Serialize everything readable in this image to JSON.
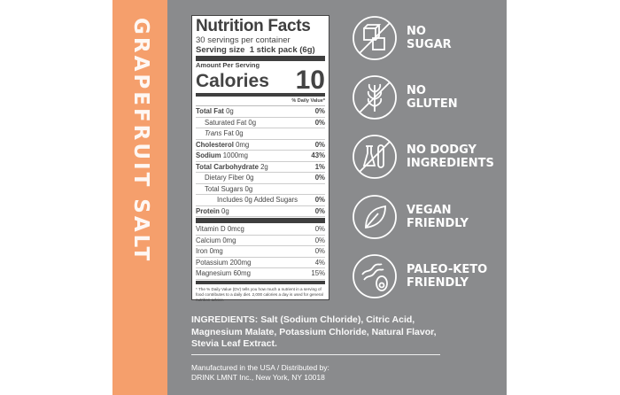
{
  "flavor": "GRAPEFRUIT SALT",
  "colors": {
    "accent": "#f59f6c",
    "panel": "#8a8b8d"
  },
  "nutrition": {
    "title": "Nutrition Facts",
    "servings": "30 servings per container",
    "serving_size_label": "Serving size",
    "serving_size": "1 stick pack (6g)",
    "amount_per_serving": "Amount Per Serving",
    "calories_label": "Calories",
    "calories": "10",
    "dv_header": "% Daily Value*",
    "rows": [
      {
        "name": "Total Fat",
        "amt": "0g",
        "dv": "0%"
      },
      {
        "name": "Saturated Fat",
        "amt": "0g",
        "dv": "0%"
      },
      {
        "name": "Trans",
        "amt": "Fat 0g",
        "dv": ""
      },
      {
        "name": "Cholesterol",
        "amt": "0mg",
        "dv": "0%"
      },
      {
        "name": "Sodium",
        "amt": "1000mg",
        "dv": "43%"
      },
      {
        "name": "Total Carbohydrate",
        "amt": "2g",
        "dv": "1%"
      },
      {
        "name": "Dietary Fiber",
        "amt": "0g",
        "dv": "0%"
      },
      {
        "name": "Total Sugars",
        "amt": "0g",
        "dv": ""
      },
      {
        "name": "Includes 0g Added Sugars",
        "amt": "",
        "dv": "0%"
      },
      {
        "name": "Protein",
        "amt": "0g",
        "dv": "0%"
      }
    ],
    "vitamins": [
      {
        "name": "Vitamin D 0mcg",
        "dv": "0%"
      },
      {
        "name": "Calcium 0mg",
        "dv": "0%"
      },
      {
        "name": "Iron 0mg",
        "dv": "0%"
      },
      {
        "name": "Potassium 200mg",
        "dv": "4%"
      },
      {
        "name": "Magnesium 60mg",
        "dv": "15%"
      }
    ],
    "footnote": "* The % Daily Value (DV) tells you how much a nutrient in a serving of food contributes to a daily diet. 2,000 calories a day is used for general nutrition advice."
  },
  "claims": [
    {
      "icon": "no-sugar-icon",
      "l1": "NO",
      "l2": "SUGAR"
    },
    {
      "icon": "no-gluten-icon",
      "l1": "NO",
      "l2": "GLUTEN"
    },
    {
      "icon": "no-dodgy-ingredients-icon",
      "l1": "NO DODGY",
      "l2": "INGREDIENTS"
    },
    {
      "icon": "vegan-leaf-icon",
      "l1": "VEGAN",
      "l2": "FRIENDLY"
    },
    {
      "icon": "paleo-keto-icon",
      "l1": "PALEO-KETO",
      "l2": "FRIENDLY"
    }
  ],
  "ingredients": {
    "label": "INGREDIENTS:",
    "text": "Salt (Sodium Chloride), Citric Acid, Magnesium Malate, Potassium Chloride, Natural Flavor, Stevia Leaf Extract."
  },
  "manufacturer": {
    "line1": "Manufactured in the USA / Distributed by:",
    "line2": "DRINK LMNT Inc., New York, NY 10018"
  }
}
